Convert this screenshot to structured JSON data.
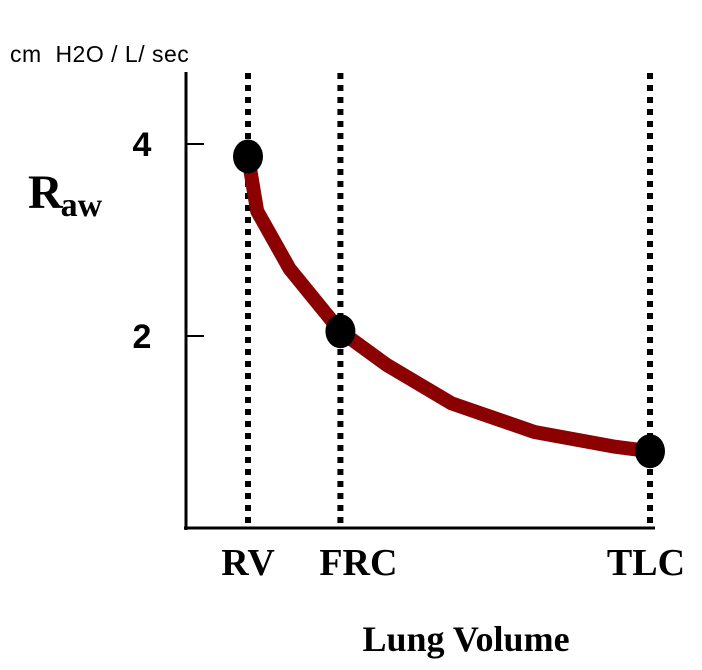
{
  "chart_data": {
    "type": "line",
    "units_label": "cm  H2O / L/ sec",
    "ylabel_main": "R",
    "ylabel_sub": "aw",
    "xlabel": "Lung Volume",
    "ylim": [
      0,
      4.75
    ],
    "yticks": [
      2,
      4
    ],
    "xlim": [
      0,
      10
    ],
    "categories": [
      {
        "label": "RV",
        "x": 1.3
      },
      {
        "label": "FRC",
        "x": 3.3
      },
      {
        "label": "TLC",
        "x": 10
      }
    ],
    "series": [
      {
        "color": "#8b0000",
        "x": [
          1.3,
          1.5,
          2.2,
          3.3,
          4.3,
          5.7,
          7.5,
          9.2,
          10
        ],
        "y": [
          3.87,
          3.3,
          2.7,
          2.05,
          1.7,
          1.3,
          1.0,
          0.85,
          0.8
        ]
      }
    ],
    "points": [
      {
        "label": "RV",
        "x": 1.3,
        "y": 3.87
      },
      {
        "label": "FRC",
        "x": 3.3,
        "y": 2.05
      },
      {
        "label": "TLC",
        "x": 10,
        "y": 0.8
      }
    ],
    "reference_lines": [
      "RV",
      "FRC",
      "TLC"
    ],
    "grid": false,
    "legend": "none"
  }
}
